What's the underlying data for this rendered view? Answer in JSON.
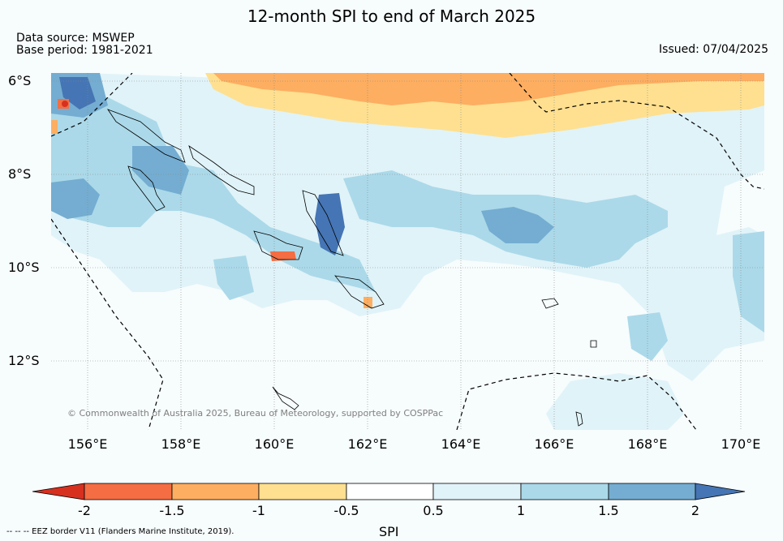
{
  "header": {
    "title": "12-month SPI to end of March 2025",
    "source": "Data source: MSWEP",
    "base_period": "Base period: 1981-2021",
    "issued": "Issued: 07/04/2025"
  },
  "map": {
    "lat_labels": [
      "6°S",
      "8°S",
      "10°S",
      "12°S"
    ],
    "lon_labels": [
      "156°E",
      "158°E",
      "160°E",
      "162°E",
      "164°E",
      "166°E",
      "168°E",
      "170°E"
    ],
    "copyright": "© Commonwealth of Australia 2025, Bureau of Meteorology, supported by COSPPac"
  },
  "colorbar": {
    "ticks": [
      "-2",
      "-1.5",
      "-1",
      "-0.5",
      "0.5",
      "1",
      "1.5",
      "2"
    ],
    "label": "SPI",
    "colors": {
      "lt_-2": "#d7301f",
      "-2_-1.5": "#f46d43",
      "-1.5_-1": "#fdae61",
      "-1_-0.5": "#fee090",
      "-0.5_0.5": "#ffffff",
      "0.5_1": "#e0f3f8",
      "1_1.5": "#abd9e9",
      "1.5_2": "#74add1",
      "gt_2": "#4575b4"
    }
  },
  "footnote": "--  --  -- EEZ border V11 (Flanders Marine Institute, 2019)."
}
